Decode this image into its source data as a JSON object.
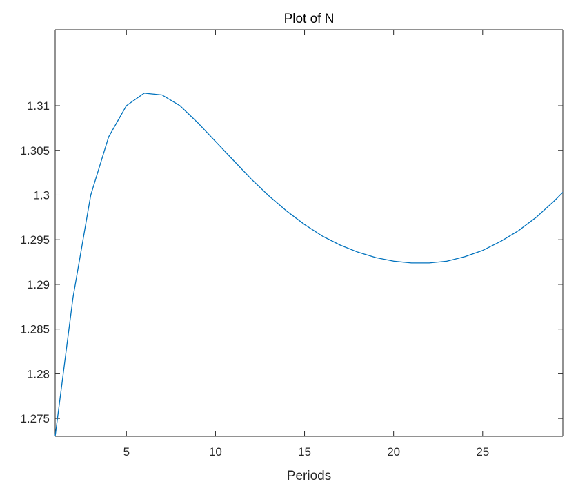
{
  "chart_data": {
    "type": "line",
    "title": "Plot of N",
    "xlabel": "Periods",
    "ylabel": "",
    "xlim": [
      1,
      29.5
    ],
    "ylim": [
      1.273,
      1.3185
    ],
    "xticks": [
      5,
      10,
      15,
      20,
      25
    ],
    "xtick_labels": [
      "5",
      "10",
      "15",
      "20",
      "25"
    ],
    "yticks": [
      1.275,
      1.28,
      1.285,
      1.29,
      1.295,
      1.3,
      1.305,
      1.31
    ],
    "ytick_labels": [
      "1.275",
      "1.28",
      "1.285",
      "1.29",
      "1.295",
      "1.3",
      "1.305",
      "1.31"
    ],
    "grid": false,
    "series": [
      {
        "color": "#0072BD",
        "x": [
          1,
          2,
          3,
          4,
          5,
          6,
          7,
          8,
          9,
          10,
          11,
          12,
          13,
          14,
          15,
          16,
          17,
          18,
          19,
          20,
          21,
          22,
          23,
          24,
          25,
          26,
          27,
          28,
          29,
          29.5
        ],
        "y": [
          1.273,
          1.2885,
          1.3,
          1.3065,
          1.31,
          1.3114,
          1.3112,
          1.31,
          1.3081,
          1.306,
          1.3039,
          1.3018,
          1.2999,
          1.2982,
          1.2967,
          1.2954,
          1.2944,
          1.2936,
          1.293,
          1.2926,
          1.2924,
          1.2924,
          1.2926,
          1.2931,
          1.2938,
          1.2948,
          1.296,
          1.2975,
          1.2993,
          1.3003
        ]
      }
    ]
  }
}
